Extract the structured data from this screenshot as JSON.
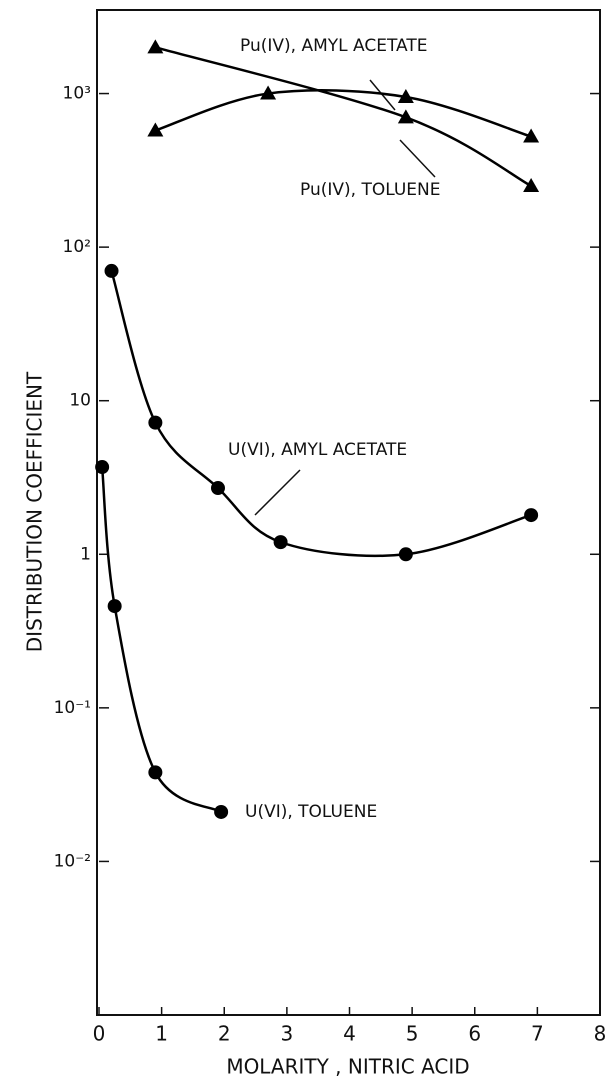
{
  "chart_data": {
    "type": "scatter",
    "x_label": "MOLARITY , NITRIC ACID",
    "y_label": "DISTRIBUTION COEFFICIENT",
    "xlim": [
      0,
      8
    ],
    "xticks": [
      0,
      1,
      2,
      3,
      4,
      5,
      6,
      7,
      8
    ],
    "ylim": [
      0.001,
      3500
    ],
    "log_y": true,
    "yticks": [
      {
        "value": 1000,
        "label": "10³"
      },
      {
        "value": 100,
        "label": "10²"
      },
      10,
      1,
      {
        "value": 0.1,
        "label": "10⁻¹"
      },
      {
        "value": 0.01,
        "label": "10⁻²"
      }
    ],
    "series": [
      {
        "name": "Pu(IV), AMYL ACETATE",
        "marker": "triangle",
        "color": "#000000",
        "x": [
          0.9,
          2.7,
          4.9,
          6.9
        ],
        "values": [
          575,
          1000,
          950,
          525
        ]
      },
      {
        "name": "Pu(IV), TOLUENE",
        "marker": "triangle",
        "color": "#000000",
        "x": [
          0.9,
          4.9,
          6.9
        ],
        "values": [
          2000,
          700,
          250
        ]
      },
      {
        "name": "U(VI), AMYL ACETATE",
        "marker": "circle",
        "color": "#000000",
        "x": [
          0.2,
          0.9,
          1.9,
          2.9,
          4.9,
          6.9
        ],
        "values": [
          70,
          7.2,
          2.7,
          1.2,
          1,
          1.8
        ]
      },
      {
        "name": "U(VI), TOLUENE",
        "marker": "circle",
        "color": "#000000",
        "x": [
          0.05,
          0.25,
          0.9,
          1.95
        ],
        "values": [
          3.7,
          0.46,
          0.038,
          0.021
        ]
      }
    ]
  }
}
